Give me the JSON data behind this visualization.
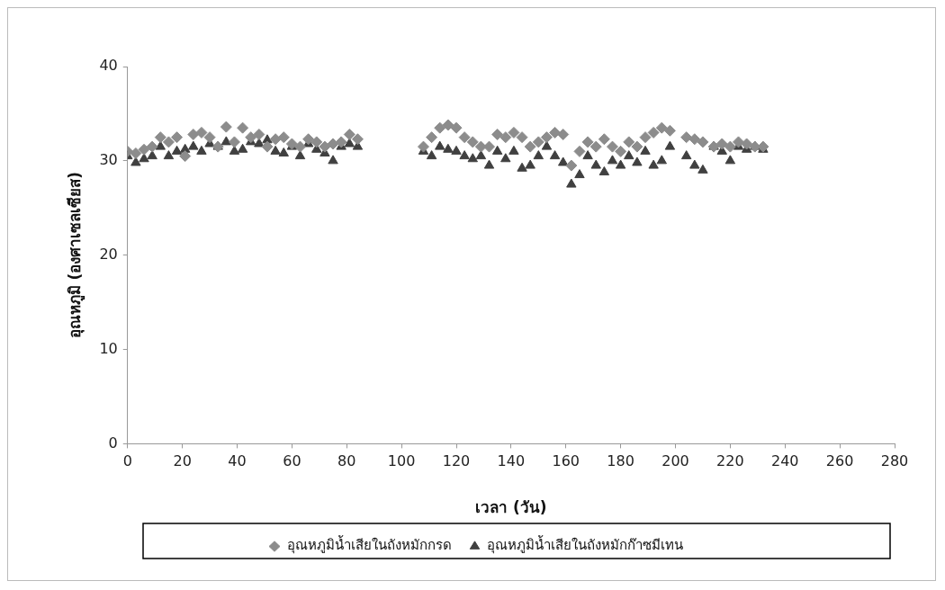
{
  "chart_data": {
    "type": "scatter",
    "xlabel": "เวลา (วัน)",
    "ylabel": "อุณหภูมิ (องศาเซลเซียส)",
    "xlim": [
      0,
      280
    ],
    "xticks": [
      0,
      20,
      40,
      60,
      80,
      100,
      120,
      140,
      160,
      180,
      200,
      220,
      240,
      260,
      280
    ],
    "ylim": [
      0,
      40
    ],
    "yticks": [
      0,
      10,
      20,
      30,
      40
    ],
    "grid": false,
    "legend": "bottom",
    "series": [
      {
        "name": "อุณหภูมิน้ำเสียในถังหมักกรด",
        "color": "#8c8c8c",
        "marker": "diamond",
        "x": [
          0,
          3,
          6,
          9,
          12,
          15,
          18,
          21,
          24,
          27,
          30,
          33,
          36,
          39,
          42,
          45,
          48,
          51,
          54,
          57,
          60,
          63,
          66,
          69,
          72,
          75,
          78,
          81,
          84,
          108,
          111,
          114,
          117,
          120,
          123,
          126,
          129,
          132,
          135,
          138,
          141,
          144,
          147,
          150,
          153,
          156,
          159,
          162,
          165,
          168,
          171,
          174,
          177,
          180,
          183,
          186,
          189,
          192,
          195,
          198,
          204,
          207,
          210,
          214,
          217,
          220,
          223,
          226,
          229,
          232
        ],
        "values": [
          31,
          30.8,
          31.2,
          31.5,
          32.5,
          32,
          32.5,
          30.5,
          32.8,
          33,
          32.5,
          31.5,
          33.6,
          32,
          33.5,
          32.5,
          32.8,
          31.5,
          32.3,
          32.5,
          31.8,
          31.5,
          32.3,
          32,
          31.5,
          31.8,
          32,
          32.8,
          32.3,
          31.5,
          32.5,
          33.5,
          33.8,
          33.5,
          32.5,
          32,
          31.5,
          31.5,
          32.8,
          32.5,
          33,
          32.5,
          31.5,
          32,
          32.5,
          33,
          32.8,
          29.5,
          31,
          32,
          31.5,
          32.3,
          31.5,
          31,
          32,
          31.5,
          32.5,
          33,
          33.5,
          33.2,
          32.5,
          32.3,
          32,
          31.5,
          31.8,
          31.5,
          32,
          31.8,
          31.5,
          31.5
        ]
      },
      {
        "name": "อุณหภูมิน้ำเสียในถังหมักก๊าซมีเทน",
        "color": "#404040",
        "marker": "triangle",
        "x": [
          0,
          3,
          6,
          9,
          12,
          15,
          18,
          21,
          24,
          27,
          30,
          33,
          36,
          39,
          42,
          45,
          48,
          51,
          54,
          57,
          60,
          63,
          66,
          69,
          72,
          75,
          78,
          81,
          84,
          108,
          111,
          114,
          117,
          120,
          123,
          126,
          129,
          132,
          135,
          138,
          141,
          144,
          147,
          150,
          153,
          156,
          159,
          162,
          165,
          168,
          171,
          174,
          177,
          180,
          183,
          186,
          189,
          192,
          195,
          198,
          204,
          207,
          210,
          214,
          217,
          220,
          223,
          226,
          229,
          232
        ],
        "values": [
          30.5,
          29.8,
          30.2,
          30.5,
          31.5,
          30.5,
          31,
          31.2,
          31.5,
          31,
          31.8,
          31.5,
          32,
          31,
          31.2,
          32,
          31.8,
          32.2,
          31,
          30.8,
          31.5,
          30.5,
          31.8,
          31.2,
          30.8,
          30,
          31.5,
          31.8,
          31.5,
          31,
          30.5,
          31.5,
          31.2,
          31,
          30.5,
          30.2,
          30.5,
          29.5,
          31,
          30.2,
          31,
          29.2,
          29.5,
          30.5,
          31.5,
          30.5,
          29.8,
          27.5,
          28.5,
          30.5,
          29.5,
          28.8,
          30,
          29.5,
          30.5,
          29.8,
          31,
          29.5,
          30,
          31.5,
          30.5,
          29.5,
          29,
          31.5,
          31,
          30,
          31.5,
          31.2,
          31.5,
          31.2
        ]
      }
    ]
  }
}
